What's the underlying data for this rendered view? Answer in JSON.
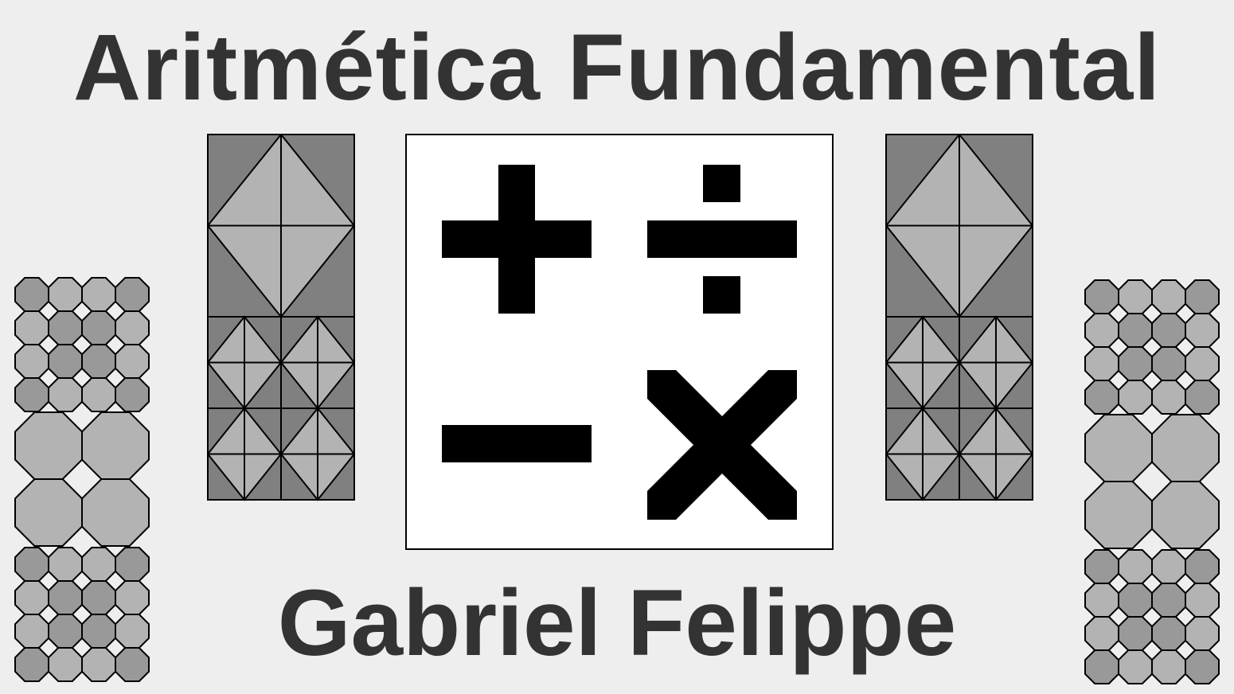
{
  "title": "Aritmética Fundamental",
  "author": "Gabriel Felippe",
  "colors": {
    "background": "#eeeeee",
    "text": "#333333",
    "tile_dark": "#808080",
    "tile_light": "#b3b3b3",
    "octagon_dark": "#999999",
    "octagon_light": "#b3b3b3",
    "symbol": "#000000",
    "panel_background": "#ffffff"
  },
  "symbols": [
    "plus-icon",
    "divide-icon",
    "minus-icon",
    "multiply-icon"
  ],
  "octagon_tile_pattern": {
    "dark_cells": [
      [
        0,
        0
      ],
      [
        0,
        3
      ],
      [
        1,
        1
      ],
      [
        1,
        2
      ],
      [
        2,
        1
      ],
      [
        2,
        2
      ],
      [
        3,
        0
      ],
      [
        3,
        3
      ]
    ]
  }
}
